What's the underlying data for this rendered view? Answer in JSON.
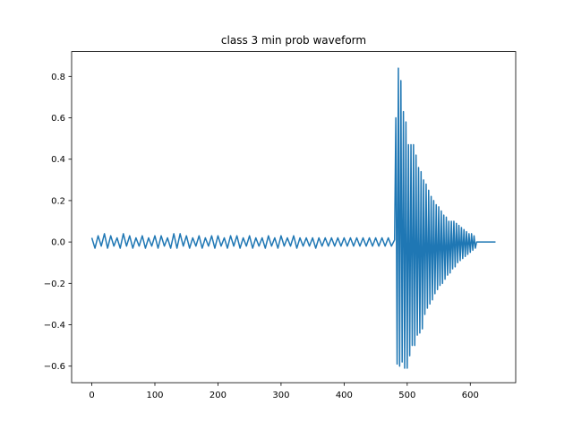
{
  "chart_data": {
    "type": "line",
    "title": "class 3 min prob waveform",
    "color": "#1f77b4",
    "x": [
      0,
      5,
      10,
      15,
      20,
      25,
      30,
      35,
      40,
      45,
      50,
      55,
      60,
      65,
      70,
      75,
      80,
      85,
      90,
      95,
      100,
      105,
      110,
      115,
      120,
      125,
      130,
      135,
      140,
      145,
      150,
      155,
      160,
      165,
      170,
      175,
      180,
      185,
      190,
      195,
      200,
      205,
      210,
      215,
      220,
      225,
      230,
      235,
      240,
      245,
      250,
      255,
      260,
      265,
      270,
      275,
      280,
      285,
      290,
      295,
      300,
      305,
      310,
      315,
      320,
      325,
      330,
      335,
      340,
      345,
      350,
      355,
      360,
      365,
      370,
      375,
      380,
      385,
      390,
      395,
      400,
      405,
      410,
      415,
      420,
      425,
      430,
      435,
      440,
      445,
      450,
      455,
      460,
      465,
      470,
      475,
      480,
      482,
      484,
      486,
      488,
      490,
      492,
      494,
      496,
      498,
      500,
      502,
      504,
      506,
      508,
      510,
      512,
      514,
      516,
      518,
      520,
      522,
      524,
      526,
      528,
      530,
      532,
      534,
      536,
      538,
      540,
      542,
      544,
      546,
      548,
      550,
      552,
      554,
      556,
      558,
      560,
      562,
      564,
      566,
      568,
      570,
      572,
      574,
      576,
      578,
      580,
      582,
      584,
      586,
      588,
      590,
      592,
      594,
      596,
      598,
      600,
      602,
      604,
      606,
      608,
      610,
      640
    ],
    "values": [
      0.02,
      -0.03,
      0.03,
      -0.02,
      0.04,
      -0.03,
      0.03,
      -0.02,
      0.02,
      -0.03,
      0.04,
      -0.02,
      0.03,
      -0.03,
      0.02,
      -0.02,
      0.03,
      -0.03,
      0.02,
      -0.02,
      0.03,
      -0.03,
      0.03,
      -0.02,
      0.02,
      -0.03,
      0.04,
      -0.03,
      0.04,
      -0.02,
      0.03,
      -0.03,
      0.02,
      -0.02,
      0.03,
      -0.03,
      0.02,
      -0.02,
      0.03,
      -0.03,
      0.03,
      -0.02,
      0.02,
      -0.03,
      0.03,
      -0.02,
      0.03,
      -0.03,
      0.02,
      -0.02,
      0.03,
      -0.03,
      0.02,
      -0.02,
      0.02,
      -0.03,
      0.03,
      -0.02,
      0.02,
      -0.03,
      0.03,
      -0.02,
      0.02,
      -0.02,
      0.03,
      -0.03,
      0.02,
      -0.02,
      0.02,
      -0.02,
      0.02,
      -0.03,
      0.02,
      -0.02,
      0.02,
      -0.02,
      0.02,
      -0.02,
      0.02,
      -0.02,
      0.02,
      -0.02,
      0.02,
      -0.02,
      0.02,
      -0.02,
      0.02,
      -0.02,
      0.02,
      -0.02,
      0.02,
      -0.02,
      0.02,
      -0.02,
      0.02,
      -0.02,
      0.01,
      0.6,
      -0.59,
      0.84,
      -0.6,
      0.78,
      -0.58,
      0.63,
      -0.61,
      0.58,
      -0.61,
      0.47,
      -0.55,
      0.47,
      -0.5,
      0.47,
      -0.5,
      0.42,
      -0.45,
      0.36,
      -0.44,
      0.34,
      -0.42,
      0.3,
      -0.35,
      0.28,
      -0.32,
      0.25,
      -0.3,
      0.22,
      -0.28,
      0.2,
      -0.25,
      0.18,
      -0.23,
      0.17,
      -0.21,
      0.15,
      -0.2,
      0.13,
      -0.18,
      0.12,
      -0.16,
      0.1,
      -0.15,
      0.1,
      -0.13,
      0.1,
      -0.12,
      0.09,
      -0.1,
      0.08,
      -0.09,
      0.07,
      -0.08,
      0.06,
      -0.07,
      0.05,
      -0.06,
      0.04,
      -0.05,
      0.04,
      -0.04,
      0.03,
      -0.03,
      0.0,
      0.0
    ],
    "xlim": [
      -32,
      672
    ],
    "xticks": [
      0,
      100,
      200,
      300,
      400,
      500,
      600
    ],
    "ylim": [
      -0.68,
      0.92
    ],
    "yticks": [
      {
        "value": -0.6,
        "label": "−0.6"
      },
      {
        "value": -0.4,
        "label": "−0.4"
      },
      {
        "value": -0.2,
        "label": "−0.2"
      },
      {
        "value": 0,
        "label": "0.0"
      },
      0.2,
      0.4,
      0.6,
      0.8
    ]
  }
}
